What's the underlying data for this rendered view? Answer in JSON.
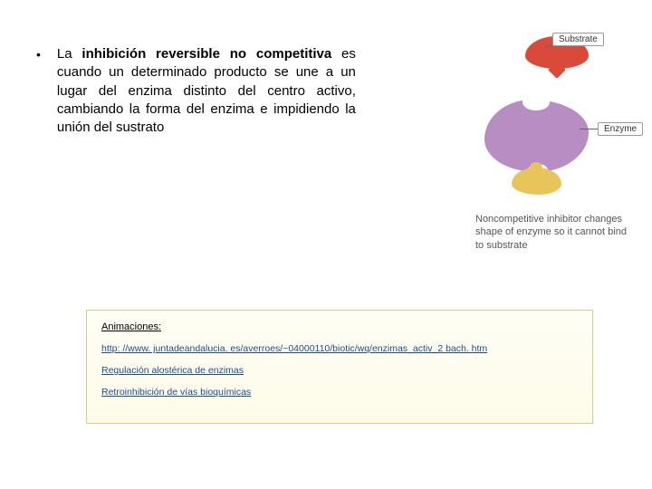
{
  "bullet": "•",
  "para_lead": "La ",
  "para_bold": "inhibición reversible no competitiva",
  "para_rest": " es cuando un determinado producto se une a un lugar del enzima distinto del centro activo, cambiando la forma del enzima e impidiendo la unión del sustrato",
  "substrate_label": "Substrate",
  "enzyme_label": "Enzyme",
  "caption": "Noncompetitive inhibitor changes shape of enzyme so it cannot bind to substrate",
  "anim_title": "Animaciones:",
  "link1": "http: //www. juntadeandalucia. es/averroes/~04000110/biotic/wq/enzimas_activ_2 bach. htm",
  "link2": "Regulación alostérica de enzimas",
  "link3": "Retroinhibición de vías bioquímicas"
}
